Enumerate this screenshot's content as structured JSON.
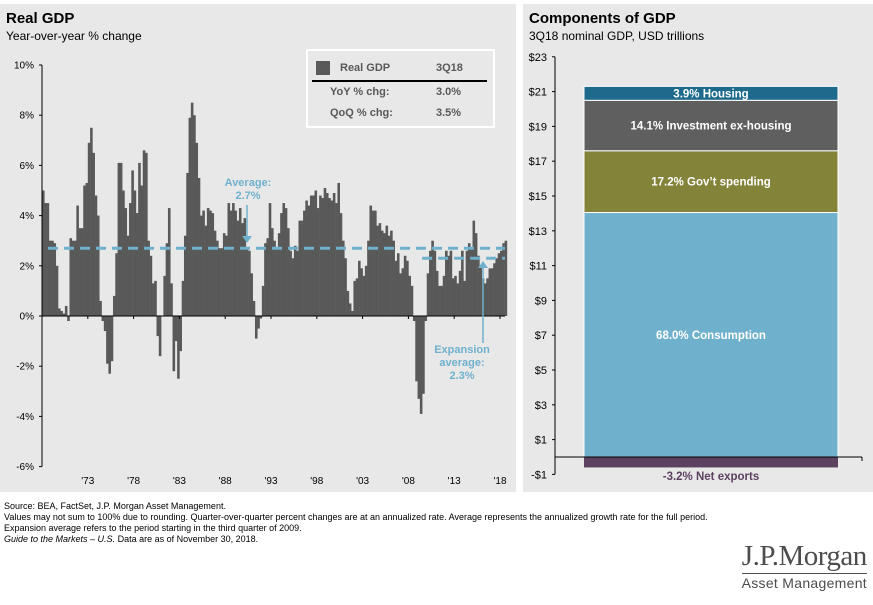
{
  "left": {
    "title": "Real GDP",
    "subtitle": "Year-over-year % change",
    "legend": {
      "series": "Real GDP",
      "period": "3Q18",
      "rows": [
        {
          "label": "YoY % chg:",
          "value": "3.0%"
        },
        {
          "label": "QoQ % chg:",
          "value": "3.5%"
        }
      ]
    },
    "average_label_1": "Average:",
    "average_label_2": "2.7%",
    "expansion_label_1": "Expansion",
    "expansion_label_2": "average:",
    "expansion_label_3": "2.3%"
  },
  "right": {
    "title": "Components of GDP",
    "subtitle": "3Q18 nominal GDP, USD trillions"
  },
  "footer": {
    "line1": "Source: BEA, FactSet, J.P. Morgan Asset Management.",
    "line2": "Values may not sum to 100% due to rounding. Quarter-over-quarter percent changes are at an annualized rate. Average represents the annualized growth rate for the full period. Expansion average refers to the period starting in the third quarter of 2009.",
    "guide_italic": "Guide to the Markets – U.S.",
    "line3_rest": " Data are as of November 30, 2018."
  },
  "logo": {
    "name": "J.P.Morgan",
    "sub": "Asset Management"
  },
  "colors": {
    "bar": "#595959",
    "average": "#6fb1cd",
    "consumption": "#6fb1cd",
    "gov": "#83833a",
    "investment": "#5f5f5f",
    "housing": "#1d6a8c",
    "net_exports": "#5c4160"
  },
  "chart_data": [
    {
      "type": "bar",
      "title": "Real GDP",
      "subtitle": "Year-over-year % change",
      "start": "1968Q1",
      "end": "2018Q3",
      "ylim": [
        -6,
        10
      ],
      "yticks": [
        -6,
        -4,
        -2,
        0,
        2,
        4,
        6,
        8,
        10
      ],
      "ytick_labels": [
        "-6%",
        "-4%",
        "-2%",
        "0%",
        "2%",
        "4%",
        "6%",
        "8%",
        "10%"
      ],
      "xticks": [
        1973,
        1978,
        1983,
        1988,
        1993,
        1998,
        2003,
        2008,
        2013,
        2018
      ],
      "xtick_labels": [
        "'73",
        "'78",
        "'83",
        "'88",
        "'93",
        "'98",
        "'03",
        "'08",
        "'13",
        "'18"
      ],
      "average": 2.7,
      "expansion_average": 2.3,
      "expansion_start": "2009Q3",
      "values": [
        5.0,
        4.5,
        4.5,
        3.0,
        3.0,
        2.9,
        2.0,
        0.3,
        0.2,
        0.1,
        0.4,
        -0.2,
        3.1,
        3.0,
        3.0,
        4.4,
        3.5,
        3.5,
        5.2,
        5.3,
        6.9,
        7.5,
        6.5,
        4.8,
        4.0,
        0.6,
        -0.2,
        -0.6,
        -1.9,
        -2.3,
        -1.8,
        0.8,
        2.5,
        6.1,
        6.1,
        5.0,
        4.3,
        3.2,
        4.5,
        5.8,
        5.0,
        4.1,
        6.1,
        5.2,
        6.6,
        6.5,
        3.0,
        2.4,
        1.3,
        1.4,
        -0.8,
        -1.6,
        0.0,
        1.6,
        2.9,
        4.3,
        1.3,
        -2.2,
        -1.0,
        -2.5,
        -1.4,
        1.4,
        3.2,
        5.7,
        7.9,
        8.5,
        8.0,
        6.9,
        5.5,
        4.0,
        4.2,
        3.6,
        4.3,
        4.2,
        4.1,
        3.4,
        3.0,
        2.7,
        2.7,
        3.3,
        3.2,
        4.5,
        4.2,
        4.5,
        4.2,
        3.8,
        4.3,
        3.7,
        3.9,
        2.7,
        2.6,
        1.7,
        0.6,
        -0.9,
        -0.5,
        -0.1,
        1.2,
        2.9,
        3.1,
        4.5,
        3.5,
        3.0,
        2.7,
        3.3,
        4.1,
        4.5,
        4.3,
        3.5,
        2.6,
        2.3,
        2.8,
        2.6,
        3.8,
        3.8,
        4.2,
        4.6,
        4.4,
        4.8,
        4.8,
        5.0,
        4.3,
        4.8,
        4.7,
        5.1,
        4.9,
        4.7,
        4.6,
        4.9,
        4.5,
        5.3,
        4.1,
        3.0,
        2.3,
        1.0,
        0.5,
        0.2,
        1.4,
        1.5,
        2.2,
        1.9,
        1.6,
        2.0,
        3.0,
        4.4,
        4.2,
        4.2,
        3.6,
        3.7,
        3.4,
        3.3,
        3.6,
        3.2,
        3.4,
        3.0,
        2.2,
        2.5,
        1.7,
        1.9,
        2.4,
        2.2,
        1.6,
        1.2,
        -0.2,
        -2.6,
        -3.3,
        -3.9,
        -3.1,
        -0.2,
        1.7,
        2.6,
        3.0,
        2.6,
        1.8,
        1.2,
        1.2,
        1.6,
        2.6,
        2.4,
        2.6,
        1.5,
        1.6,
        1.3,
        1.8,
        2.6,
        1.4,
        2.6,
        2.9,
        2.7,
        3.8,
        3.3,
        2.4,
        2.0,
        1.5,
        1.3,
        1.5,
        1.9,
        1.9,
        2.1,
        2.3,
        2.5,
        2.6,
        2.9,
        3.0
      ]
    },
    {
      "type": "bar",
      "stacked": true,
      "title": "Components of GDP",
      "subtitle": "3Q18 nominal GDP, USD trillions",
      "ylim": [
        -1,
        23
      ],
      "yticks": [
        -1,
        1,
        3,
        5,
        7,
        9,
        11,
        13,
        15,
        17,
        19,
        21,
        23
      ],
      "ytick_labels": [
        "-$1",
        "$1",
        "$3",
        "$5",
        "$7",
        "$9",
        "$11",
        "$13",
        "$15",
        "$17",
        "$19",
        "$21",
        "$23"
      ],
      "segments": [
        {
          "name": "Consumption",
          "label": "68.0% Consumption",
          "share": 68.0,
          "from": 0,
          "to": 14.05,
          "color": "#6fb1cd"
        },
        {
          "name": "Gov't spending",
          "label": "17.2% Gov’t spending",
          "share": 17.2,
          "from": 14.05,
          "to": 17.6,
          "color": "#83833a"
        },
        {
          "name": "Investment ex-housing",
          "label": "14.1% Investment ex-housing",
          "share": 14.1,
          "from": 17.6,
          "to": 20.5,
          "color": "#5f5f5f"
        },
        {
          "name": "Housing",
          "label": "3.9% Housing",
          "share": 3.9,
          "from": 20.5,
          "to": 21.3,
          "color": "#1d6a8c"
        },
        {
          "name": "Net exports",
          "label": "-3.2%  Net exports",
          "share": -3.2,
          "from": -0.6,
          "to": 0,
          "color": "#5c4160"
        }
      ]
    }
  ]
}
